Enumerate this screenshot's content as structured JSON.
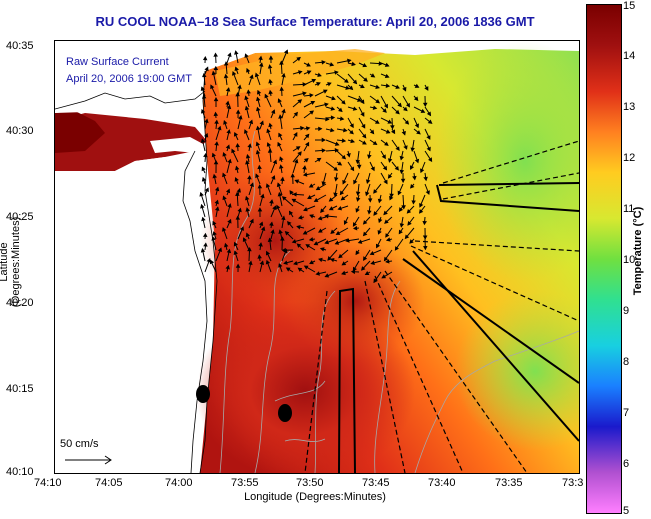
{
  "title": "RU COOL  NOAA–18  Sea Surface Temperature:  April 20, 2006 1836 GMT",
  "legend": {
    "line1": "Raw Surface Current",
    "line2": "April 20, 2006 19:00 GMT"
  },
  "scale_label": "50 cm/s",
  "axes": {
    "xlabel": "Longitude (Degrees:Minutes)",
    "ylabel": "Latitude (Degrees:Minutes)",
    "xticks": [
      "74:10",
      "74:05",
      "74:00",
      "73:55",
      "73:50",
      "73:45",
      "73:40",
      "73:35",
      "73:3"
    ],
    "yticks": [
      "40:35",
      "40:30",
      "40:25",
      "40:20",
      "40:15",
      "40:10"
    ]
  },
  "colorbar": {
    "label": "Temperature (°C)",
    "ticks": [
      "15",
      "14",
      "13",
      "12",
      "11",
      "10",
      "9",
      "8",
      "7",
      "6",
      "5"
    ],
    "range": [
      5,
      15
    ],
    "colors": [
      "#ff7fff",
      "#b050d0",
      "#1a1acc",
      "#1a80ff",
      "#18d0e0",
      "#30e090",
      "#70e040",
      "#d8e830",
      "#ffcc20",
      "#ff8020",
      "#e03018",
      "#a01010",
      "#7a0000"
    ]
  },
  "markers": {
    "fill": "#000000"
  }
}
